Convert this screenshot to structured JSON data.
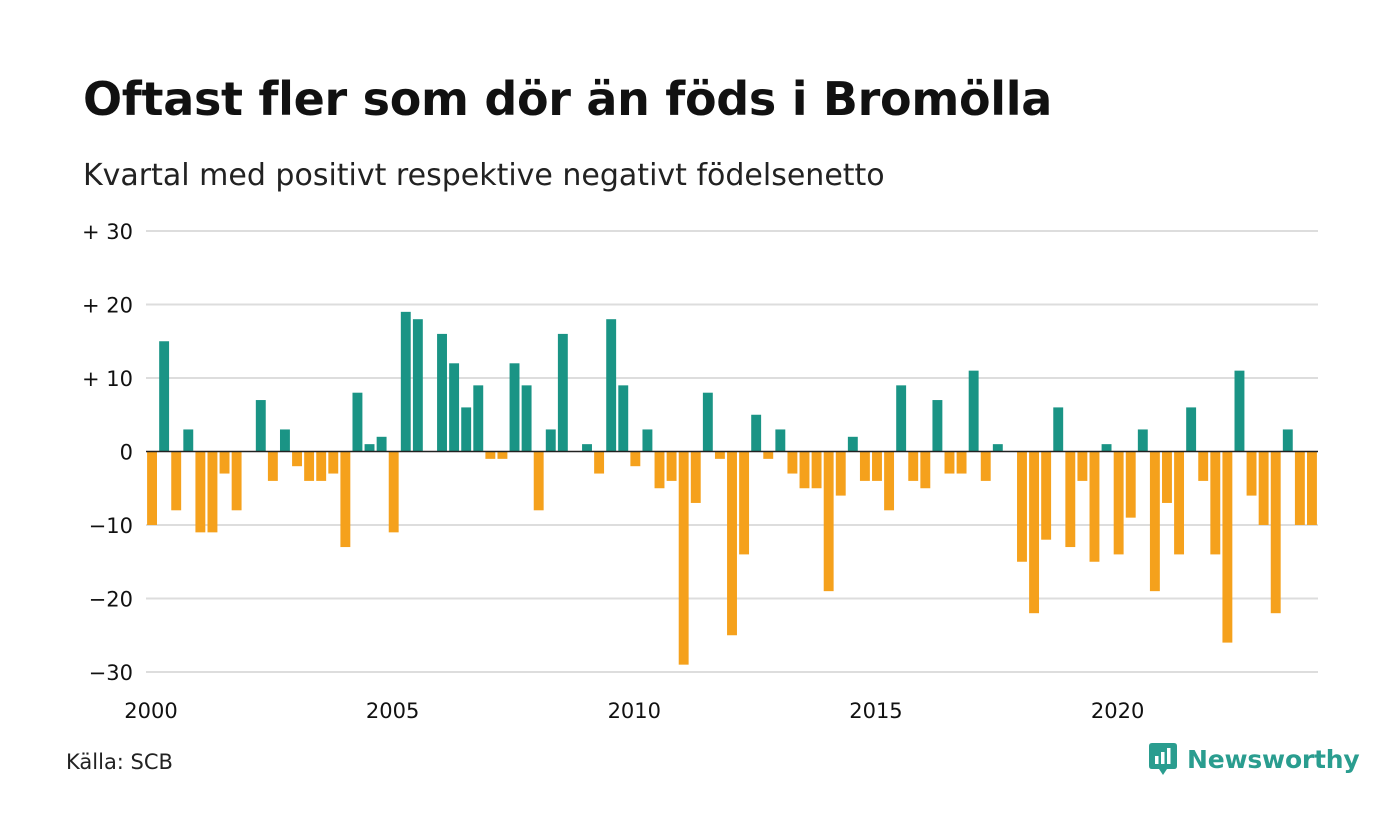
{
  "header": {
    "title": "Oftast fler som dör än föds i Bromölla",
    "subtitle": "Kvartal med positivt respektive negativt födelsenetto"
  },
  "footer": {
    "source": "Källa: SCB",
    "brand": "Newsworthy",
    "brand_icon": "newsworthy-logo-icon"
  },
  "colors": {
    "positive": "#1a9485",
    "negative": "#f5a11c",
    "grid": "#dddddd",
    "zero_line": "#222222",
    "brand": "#2a9d8f"
  },
  "chart_data": {
    "type": "bar",
    "ylim": [
      -30,
      30
    ],
    "yticks": [
      30,
      20,
      10,
      0,
      -10,
      -20,
      -30
    ],
    "ytick_labels": [
      "+ 30",
      "+ 20",
      "+ 10",
      "0",
      "−10",
      "−20",
      "−30"
    ],
    "xlim": [
      2000,
      2024.25
    ],
    "xticks": [
      2000,
      2005,
      2010,
      2015,
      2020
    ],
    "xtick_labels": [
      "2000",
      "2005",
      "2010",
      "2015",
      "2020"
    ],
    "grid": true,
    "start": "2000 Q1",
    "values": [
      -10,
      15,
      -8,
      3,
      -11,
      -11,
      -3,
      -8,
      0,
      7,
      -4,
      3,
      -2,
      -4,
      -4,
      -3,
      -13,
      8,
      1,
      2,
      -11,
      19,
      18,
      0,
      16,
      12,
      6,
      9,
      -1,
      -1,
      12,
      9,
      -8,
      3,
      16,
      0,
      1,
      -3,
      18,
      9,
      -2,
      3,
      -5,
      -4,
      -29,
      -7,
      8,
      -1,
      -25,
      -14,
      5,
      -1,
      3,
      -3,
      -5,
      -5,
      -19,
      -6,
      2,
      -4,
      -4,
      -8,
      9,
      -4,
      -5,
      7,
      -3,
      -3,
      11,
      -4,
      1,
      0,
      -15,
      -22,
      -12,
      6,
      -13,
      -4,
      -15,
      1,
      -14,
      -9,
      3,
      -19,
      -7,
      -14,
      6,
      -4,
      -14,
      -26,
      11,
      -6,
      -10,
      -22,
      3,
      -10,
      -10
    ]
  }
}
